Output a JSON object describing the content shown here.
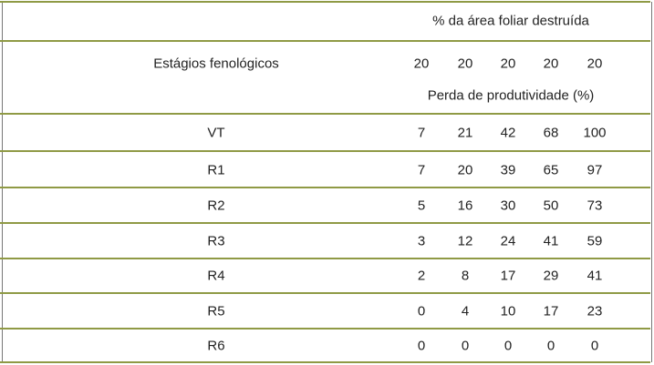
{
  "header": {
    "title": "% da área foliar destruída",
    "stage_label": "Estágios fenológicos",
    "percentages": [
      20,
      20,
      20,
      20,
      20
    ],
    "subtitle": "Perda de produtividade (%)"
  },
  "rows": [
    {
      "stage": "VT",
      "values": [
        7,
        21,
        42,
        68,
        100
      ]
    },
    {
      "stage": "R1",
      "values": [
        7,
        20,
        39,
        65,
        97
      ]
    },
    {
      "stage": "R2",
      "values": [
        5,
        16,
        30,
        50,
        73
      ]
    },
    {
      "stage": "R3",
      "values": [
        3,
        12,
        24,
        41,
        59
      ]
    },
    {
      "stage": "R4",
      "values": [
        2,
        8,
        17,
        29,
        41
      ]
    },
    {
      "stage": "R5",
      "values": [
        0,
        4,
        10,
        17,
        23
      ]
    },
    {
      "stage": "R6",
      "values": [
        0,
        0,
        0,
        0,
        0
      ]
    }
  ]
}
